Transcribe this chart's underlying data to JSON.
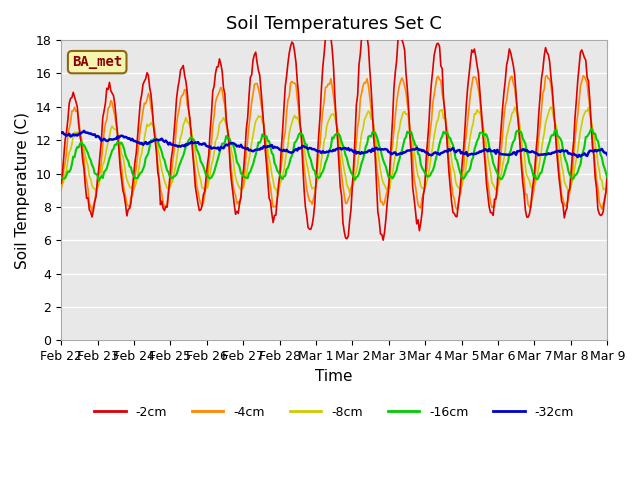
{
  "title": "Soil Temperatures Set C",
  "xlabel": "Time",
  "ylabel": "Soil Temperature (C)",
  "ylim": [
    0,
    18
  ],
  "yticks": [
    0,
    2,
    4,
    6,
    8,
    10,
    12,
    14,
    16,
    18
  ],
  "background_color": "#ffffff",
  "plot_bg_color": "#e8e8e8",
  "grid_color": "#ffffff",
  "legend_label": "BA_met",
  "series_colors": {
    "-2cm": "#dd0000",
    "-4cm": "#ff8800",
    "-8cm": "#cccc00",
    "-16cm": "#00cc00",
    "-32cm": "#0000cc"
  },
  "n_points": 408,
  "date_labels": [
    "Feb 22",
    "Feb 23",
    "Feb 24",
    "Feb 25",
    "Feb 26",
    "Feb 27",
    "Feb 28",
    "Mar 1",
    "Mar 2",
    "Mar 3",
    "Mar 4",
    "Mar 5",
    "Mar 6",
    "Mar 7",
    "Mar 8",
    "Mar 9"
  ],
  "title_fontsize": 13,
  "axis_label_fontsize": 11,
  "tick_fontsize": 9
}
